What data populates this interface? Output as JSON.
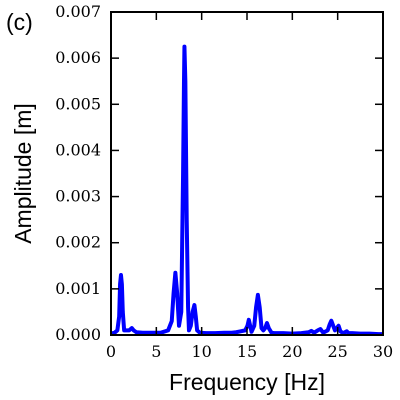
{
  "panel_label": "(c)",
  "chart_data": {
    "type": "line",
    "title": "",
    "xlabel": "Frequency [Hz]",
    "ylabel": "Amplitude [m]",
    "xlim": [
      0,
      30
    ],
    "ylim": [
      0,
      0.007
    ],
    "xticks": [
      0,
      5,
      10,
      15,
      20,
      25,
      30
    ],
    "xtick_labels": [
      "0",
      "5",
      "10",
      "15",
      "20",
      "25",
      "30"
    ],
    "yticks": [
      0,
      0.001,
      0.002,
      0.003,
      0.004,
      0.005,
      0.006,
      0.007
    ],
    "ytick_labels": [
      "0.000",
      "0.001",
      "0.002",
      "0.003",
      "0.004",
      "0.005",
      "0.006",
      "0.007"
    ],
    "grid": false,
    "line_color": "#0000ff",
    "series": [
      {
        "x": [
          0,
          0.4,
          0.7,
          0.9,
          1.0,
          1.1,
          1.2,
          1.3,
          1.45,
          1.7,
          2.0,
          2.3,
          2.5,
          2.8,
          3.5,
          4.5,
          5.5,
          6.3,
          6.7,
          6.9,
          7.1,
          7.3,
          7.5,
          7.75,
          7.95,
          8.05,
          8.1,
          8.2,
          8.35,
          8.5,
          8.6,
          8.8,
          9.0,
          9.2,
          9.35,
          9.5,
          9.8,
          10.5,
          11.5,
          12.5,
          13.3,
          13.8,
          14.3,
          14.8,
          15.05,
          15.2,
          15.35,
          15.5,
          15.8,
          16.0,
          16.2,
          16.4,
          16.6,
          16.8,
          17.0,
          17.2,
          17.4,
          17.7,
          18.0,
          19.0,
          20.0,
          21.0,
          21.8,
          22.1,
          22.4,
          22.8,
          23.1,
          23.4,
          23.9,
          24.1,
          24.3,
          24.7,
          24.9,
          25.1,
          25.3,
          25.6,
          26.0,
          26.2,
          26.6,
          27.5,
          28.5,
          29.5,
          30.0
        ],
        "y": [
          3e-05,
          5e-05,
          0.0001,
          0.0004,
          0.0011,
          0.0013,
          0.0011,
          0.0005,
          0.0001,
          0.0001,
          0.0001,
          0.00015,
          0.0001,
          6e-05,
          5e-05,
          5e-05,
          5e-05,
          0.0001,
          0.0003,
          0.0009,
          0.00135,
          0.0009,
          0.0002,
          0.0005,
          0.0035,
          0.0055,
          0.00625,
          0.0055,
          0.0025,
          0.0006,
          0.0001,
          0.0002,
          0.0005,
          0.00065,
          0.0004,
          0.0001,
          5e-05,
          4e-05,
          4e-05,
          5e-05,
          5e-05,
          6e-05,
          8e-05,
          0.0001,
          0.0002,
          0.00033,
          0.0002,
          7e-05,
          0.0002,
          0.0006,
          0.00087,
          0.0006,
          0.00015,
          0.0001,
          0.00015,
          0.00026,
          0.00015,
          5e-05,
          4e-05,
          4e-05,
          3e-05,
          4e-05,
          6e-05,
          9e-05,
          5e-05,
          0.0001,
          0.00013,
          5e-05,
          0.0001,
          0.00022,
          0.00031,
          0.0001,
          0.00015,
          0.0002,
          8e-05,
          4e-05,
          8e-05,
          4e-05,
          4e-05,
          3e-05,
          3e-05,
          2e-05,
          2e-05
        ]
      }
    ]
  }
}
